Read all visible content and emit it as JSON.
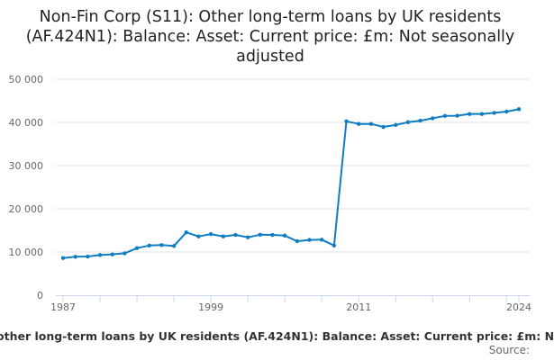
{
  "chart_data": {
    "type": "line",
    "title": "Non-Fin Corp (S11): Other long-term loans by UK residents (AF.424N1): Balance: Asset: Current price: £m: Not seasonally adjusted",
    "xlabel": "other long-term loans by UK residents (AF.424N1): Balance: Asset: Current price: £m: N",
    "ylabel": "",
    "source_label": "Source:",
    "ylim": [
      0,
      50000
    ],
    "yticks": [
      "0",
      "10 000",
      "20 000",
      "30 000",
      "40 000",
      "50 000"
    ],
    "xticklabels": [
      "1987",
      "1999",
      "2011",
      "2024"
    ],
    "grid": true,
    "line_color": "#0f7dc2",
    "x": [
      1987,
      1988,
      1989,
      1990,
      1991,
      1992,
      1993,
      1994,
      1995,
      1996,
      1997,
      1998,
      1999,
      2000,
      2001,
      2002,
      2003,
      2004,
      2005,
      2006,
      2007,
      2008,
      2009,
      2010,
      2011,
      2012,
      2013,
      2014,
      2015,
      2016,
      2017,
      2018,
      2019,
      2020,
      2021,
      2022,
      2023,
      2024
    ],
    "values": [
      8600,
      8900,
      8950,
      9300,
      9450,
      9700,
      10900,
      11500,
      11600,
      11400,
      14550,
      13600,
      14150,
      13600,
      13950,
      13400,
      14000,
      13950,
      13800,
      12500,
      12800,
      12850,
      11500,
      40250,
      39650,
      39650,
      38950,
      39400,
      40050,
      40400,
      40950,
      41500,
      41550,
      41950,
      41950,
      42200,
      42500,
      43050
    ]
  }
}
